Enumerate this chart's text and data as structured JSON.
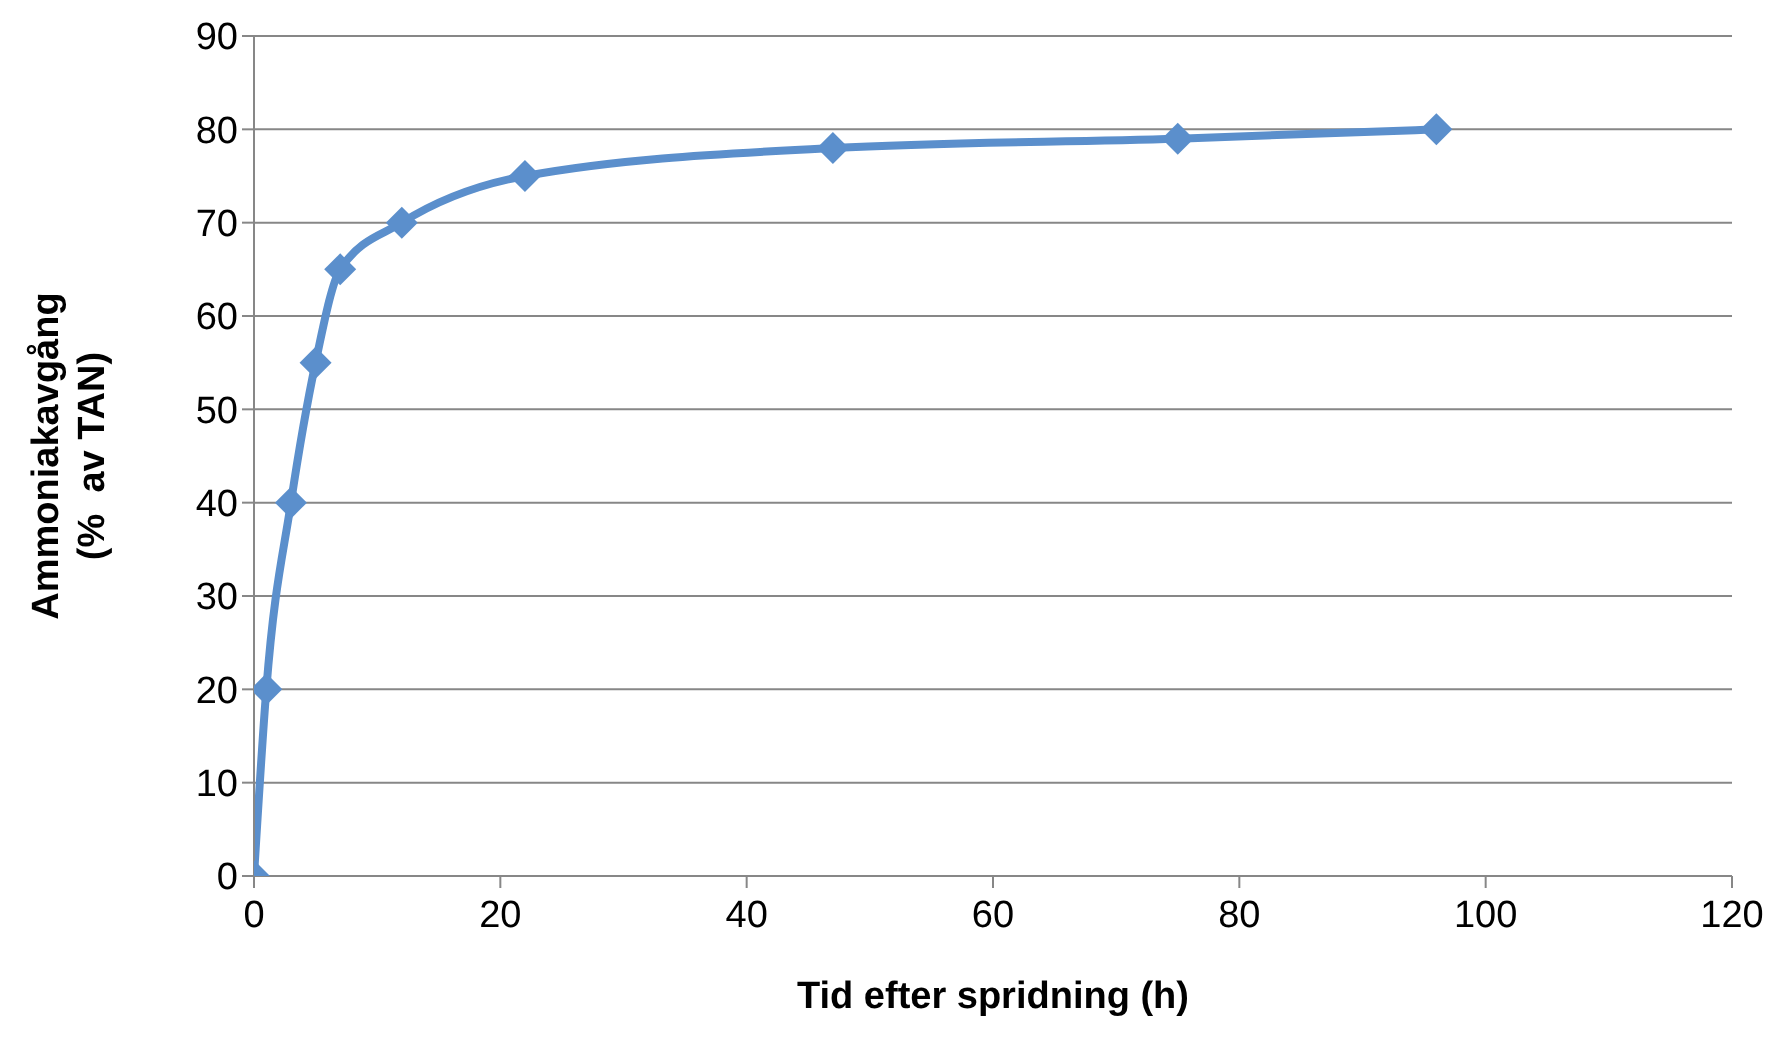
{
  "chart_data": {
    "type": "line",
    "xlabel": "Tid efter spridning (h)",
    "ylabel": "Ammoniakavgång\n(%  av TAN)",
    "x": [
      0,
      1,
      3,
      5,
      7,
      12,
      22,
      47,
      75,
      96
    ],
    "series": [
      {
        "color": "#5b8fcc",
        "values": [
          0,
          20,
          40,
          55,
          65,
          70,
          75,
          78,
          79,
          80
        ]
      }
    ],
    "xlim": [
      0,
      120
    ],
    "xticks": [
      0,
      20,
      40,
      60,
      80,
      100,
      120
    ],
    "ylim": [
      0,
      90
    ],
    "yticks": [
      0,
      10,
      20,
      30,
      40,
      50,
      60,
      70,
      80,
      90
    ],
    "grid": "y",
    "legend": false,
    "marker": "diamond",
    "line_style": "solid"
  }
}
